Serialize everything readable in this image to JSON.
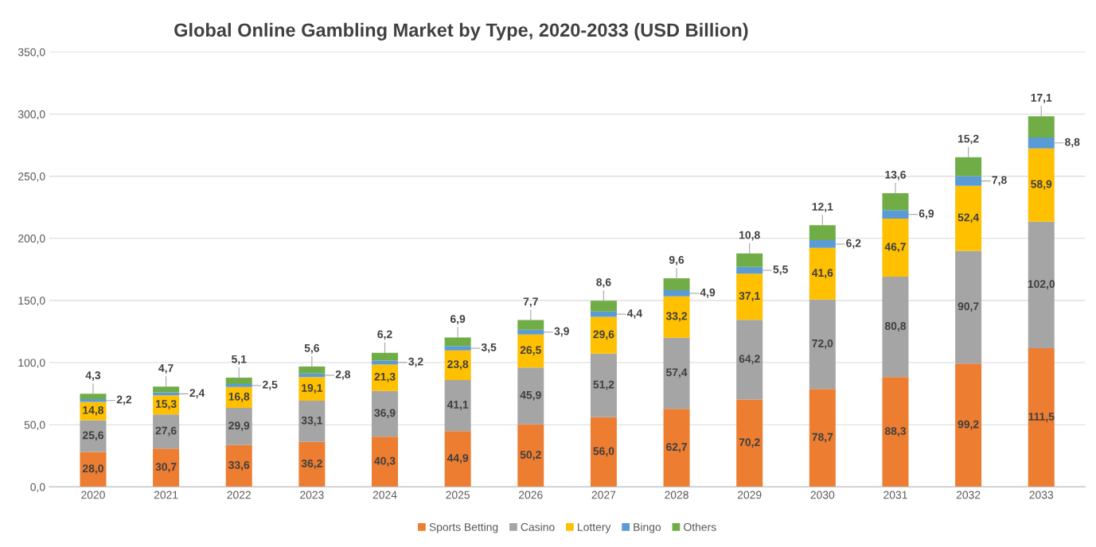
{
  "chart_data": {
    "type": "bar",
    "stacked": true,
    "title": "Global Online Gambling Market by Type, 2020-2033 (USD Billion)",
    "categories": [
      "2020",
      "2021",
      "2022",
      "2023",
      "2024",
      "2025",
      "2026",
      "2027",
      "2028",
      "2029",
      "2030",
      "2031",
      "2032",
      "2033"
    ],
    "series": [
      {
        "name": "Sports Betting",
        "color": "#ed7d31",
        "values": [
          28.0,
          30.7,
          33.6,
          36.2,
          40.3,
          44.9,
          50.2,
          56.0,
          62.7,
          70.2,
          78.7,
          88.3,
          99.2,
          111.5
        ],
        "value_labels": [
          "28,0",
          "30,7",
          "33,6",
          "36,2",
          "40,3",
          "44,9",
          "50,2",
          "56,0",
          "62,7",
          "70,2",
          "78,7",
          "88,3",
          "99,2",
          "111,5"
        ]
      },
      {
        "name": "Casino",
        "color": "#a5a5a5",
        "values": [
          25.6,
          27.6,
          29.9,
          33.1,
          36.9,
          41.1,
          45.9,
          51.2,
          57.4,
          64.2,
          72.0,
          80.8,
          90.7,
          102.0
        ],
        "value_labels": [
          "25,6",
          "27,6",
          "29,9",
          "33,1",
          "36,9",
          "41,1",
          "45,9",
          "51,2",
          "57,4",
          "64,2",
          "72,0",
          "80,8",
          "90,7",
          "102,0"
        ]
      },
      {
        "name": "Lottery",
        "color": "#ffc000",
        "values": [
          14.8,
          15.3,
          16.8,
          19.1,
          21.3,
          23.8,
          26.5,
          29.6,
          33.2,
          37.1,
          41.6,
          46.7,
          52.4,
          58.9
        ],
        "value_labels": [
          "14,8",
          "15,3",
          "16,8",
          "19,1",
          "21,3",
          "23,8",
          "26,5",
          "29,6",
          "33,2",
          "37,1",
          "41,6",
          "46,7",
          "52,4",
          "58,9"
        ]
      },
      {
        "name": "Bingo",
        "color": "#5b9bd5",
        "values": [
          2.2,
          2.4,
          2.5,
          2.8,
          3.2,
          3.5,
          3.9,
          4.4,
          4.9,
          5.5,
          6.2,
          6.9,
          7.8,
          8.8
        ],
        "value_labels": [
          "2,2",
          "2,4",
          "2,5",
          "2,8",
          "3,2",
          "3,5",
          "3,9",
          "4,4",
          "4,9",
          "5,5",
          "6,2",
          "6,9",
          "7,8",
          "8,8"
        ]
      },
      {
        "name": "Others",
        "color": "#70ad47",
        "values": [
          4.3,
          4.7,
          5.1,
          5.6,
          6.2,
          6.9,
          7.7,
          8.6,
          9.6,
          10.8,
          12.1,
          13.6,
          15.2,
          17.1
        ],
        "value_labels": [
          "4,3",
          "4,7",
          "5,1",
          "5,6",
          "6,2",
          "6,9",
          "7,7",
          "8,6",
          "9,6",
          "10,8",
          "12,1",
          "13,6",
          "15,2",
          "17,1"
        ]
      }
    ],
    "ylim": [
      0,
      350
    ],
    "yticks": [
      {
        "value": 0,
        "label": "0,0"
      },
      {
        "value": 50,
        "label": "50,0"
      },
      {
        "value": 100,
        "label": "100,0"
      },
      {
        "value": 150,
        "label": "150,0"
      },
      {
        "value": 200,
        "label": "200,0"
      },
      {
        "value": 250,
        "label": "250,0"
      },
      {
        "value": 300,
        "label": "300,0"
      },
      {
        "value": 350,
        "label": "350,0"
      }
    ],
    "grid": "y",
    "legend": "bottom"
  }
}
